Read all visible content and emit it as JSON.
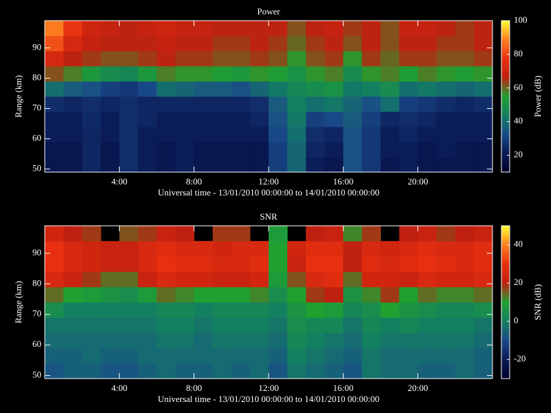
{
  "chart_data": [
    {
      "type": "heatmap",
      "title": "Power",
      "xlabel": "Universal time - 13/01/2010 00:00:00 to 14/01/2010 00:00:00",
      "ylabel": "Range (km)",
      "colorbar_label": "Power (dB)",
      "xlim": [
        0,
        24
      ],
      "ylim": [
        49,
        99
      ],
      "clim": [
        10,
        100
      ],
      "xticks": [
        {
          "value": 4,
          "label": "4:00"
        },
        {
          "value": 8,
          "label": "8:00"
        },
        {
          "value": 12,
          "label": "12:00"
        },
        {
          "value": 16,
          "label": "16:00"
        },
        {
          "value": 20,
          "label": "20:00"
        }
      ],
      "yticks": [
        50,
        60,
        70,
        80,
        90
      ],
      "cticks": [
        20,
        40,
        60,
        80,
        100
      ],
      "colors": [
        "#000028",
        "#0a1a55",
        "#1a4a8a",
        "#138060",
        "#20a030",
        "#c02010",
        "#e83010",
        "#ff8020",
        "#ffff30"
      ],
      "x_bins": [
        0,
        1,
        2,
        3,
        4,
        5,
        6,
        7,
        8,
        9,
        10,
        11,
        12,
        13,
        14,
        15,
        16,
        17,
        18,
        19,
        20,
        21,
        22,
        23,
        24
      ],
      "y_bins": [
        49,
        54,
        59,
        64,
        69,
        74,
        79,
        84,
        89,
        94,
        99
      ],
      "z": [
        [
          20,
          20,
          24,
          20,
          26,
          22,
          20,
          22,
          20,
          20,
          20,
          20,
          30,
          38,
          22,
          20,
          34,
          28,
          20,
          22,
          20,
          20,
          20,
          20
        ],
        [
          20,
          20,
          24,
          20,
          26,
          22,
          20,
          22,
          20,
          20,
          20,
          20,
          30,
          38,
          24,
          22,
          34,
          28,
          22,
          22,
          20,
          22,
          20,
          20
        ],
        [
          22,
          22,
          24,
          22,
          26,
          22,
          22,
          22,
          22,
          22,
          22,
          22,
          32,
          40,
          26,
          24,
          34,
          28,
          22,
          24,
          22,
          22,
          22,
          22
        ],
        [
          22,
          22,
          25,
          22,
          26,
          24,
          22,
          22,
          22,
          22,
          22,
          24,
          34,
          42,
          30,
          32,
          36,
          30,
          24,
          26,
          24,
          22,
          22,
          22
        ],
        [
          26,
          24,
          26,
          24,
          26,
          24,
          24,
          24,
          24,
          24,
          24,
          26,
          36,
          44,
          40,
          42,
          38,
          34,
          40,
          30,
          28,
          26,
          24,
          26
        ],
        [
          40,
          36,
          34,
          30,
          28,
          32,
          40,
          38,
          36,
          36,
          34,
          38,
          42,
          46,
          48,
          50,
          42,
          44,
          48,
          40,
          42,
          40,
          38,
          40
        ],
        [
          62,
          58,
          52,
          48,
          46,
          52,
          58,
          56,
          56,
          54,
          52,
          56,
          54,
          50,
          56,
          58,
          48,
          56,
          58,
          54,
          58,
          56,
          54,
          56
        ],
        [
          72,
          66,
          64,
          62,
          62,
          64,
          66,
          64,
          64,
          62,
          62,
          64,
          62,
          56,
          62,
          64,
          56,
          64,
          60,
          64,
          64,
          62,
          62,
          64
        ],
        [
          82,
          72,
          68,
          66,
          66,
          66,
          68,
          66,
          66,
          64,
          64,
          66,
          64,
          60,
          64,
          66,
          62,
          66,
          62,
          66,
          66,
          64,
          64,
          66
        ],
        [
          88,
          78,
          70,
          68,
          66,
          68,
          70,
          68,
          68,
          66,
          66,
          66,
          66,
          62,
          66,
          68,
          64,
          66,
          62,
          68,
          68,
          66,
          64,
          66
        ]
      ]
    },
    {
      "type": "heatmap",
      "title": "SNR",
      "xlabel": "Universal time - 13/01/2010 00:00:00 to 14/01/2010 00:00:00",
      "ylabel": "Range (km)",
      "colorbar_label": "SNR (dB)",
      "xlim": [
        0,
        24
      ],
      "ylim": [
        49,
        99
      ],
      "clim": [
        -30,
        50
      ],
      "xticks": [
        {
          "value": 4,
          "label": "4:00"
        },
        {
          "value": 8,
          "label": "8:00"
        },
        {
          "value": 12,
          "label": "12:00"
        },
        {
          "value": 16,
          "label": "16:00"
        },
        {
          "value": 20,
          "label": "20:00"
        }
      ],
      "yticks": [
        50,
        60,
        70,
        80,
        90
      ],
      "cticks": [
        -20,
        0,
        20,
        40
      ],
      "colors": [
        "#000028",
        "#0a1a55",
        "#1a4a8a",
        "#138060",
        "#20a030",
        "#c02010",
        "#e83010",
        "#ff8020",
        "#ffff30"
      ],
      "x_bins": [
        0,
        1,
        2,
        3,
        4,
        5,
        6,
        7,
        8,
        9,
        10,
        11,
        12,
        13,
        14,
        15,
        16,
        17,
        18,
        19,
        20,
        21,
        22,
        23,
        24
      ],
      "y_bins": [
        49,
        54,
        59,
        64,
        69,
        74,
        79,
        84,
        89,
        94,
        99
      ],
      "z": [
        [
          -8,
          -6,
          -6,
          -8,
          -8,
          -6,
          -4,
          -6,
          -6,
          -4,
          -6,
          -4,
          -8,
          -2,
          -4,
          -6,
          -8,
          -2,
          -4,
          -4,
          -6,
          -6,
          -4,
          -6
        ],
        [
          -6,
          -6,
          -4,
          -6,
          -6,
          -4,
          -4,
          -4,
          -4,
          -4,
          -4,
          -4,
          -6,
          0,
          -2,
          -4,
          -6,
          -2,
          -4,
          -4,
          -4,
          -4,
          -4,
          -6
        ],
        [
          -4,
          -4,
          -4,
          -4,
          -4,
          -4,
          -2,
          -2,
          -4,
          -2,
          -2,
          -2,
          -4,
          2,
          0,
          -2,
          -4,
          0,
          -2,
          -2,
          -2,
          -2,
          -2,
          -4
        ],
        [
          -2,
          -2,
          -2,
          -2,
          -2,
          -2,
          0,
          0,
          -2,
          0,
          0,
          0,
          -2,
          4,
          2,
          2,
          -2,
          2,
          0,
          2,
          0,
          0,
          0,
          -2
        ],
        [
          4,
          0,
          0,
          0,
          0,
          0,
          2,
          2,
          0,
          2,
          2,
          2,
          0,
          6,
          10,
          8,
          2,
          4,
          10,
          6,
          4,
          2,
          2,
          4
        ],
        [
          14,
          10,
          8,
          6,
          4,
          8,
          14,
          12,
          10,
          10,
          10,
          12,
          4,
          10,
          18,
          20,
          6,
          12,
          18,
          10,
          14,
          12,
          12,
          14
        ],
        [
          26,
          22,
          18,
          14,
          14,
          22,
          26,
          24,
          24,
          22,
          22,
          24,
          8,
          16,
          26,
          28,
          14,
          24,
          24,
          22,
          26,
          24,
          24,
          26
        ],
        [
          30,
          26,
          24,
          22,
          22,
          26,
          30,
          28,
          28,
          26,
          26,
          28,
          10,
          22,
          30,
          30,
          20,
          28,
          26,
          28,
          30,
          28,
          26,
          28
        ],
        [
          30,
          26,
          24,
          22,
          22,
          26,
          28,
          26,
          26,
          24,
          26,
          26,
          10,
          24,
          28,
          28,
          20,
          26,
          24,
          26,
          28,
          26,
          26,
          28
        ],
        [
          24,
          20,
          18,
          null,
          16,
          18,
          22,
          20,
          null,
          18,
          18,
          null,
          8,
          null,
          20,
          22,
          12,
          18,
          null,
          20,
          22,
          18,
          20,
          22
        ]
      ]
    }
  ]
}
